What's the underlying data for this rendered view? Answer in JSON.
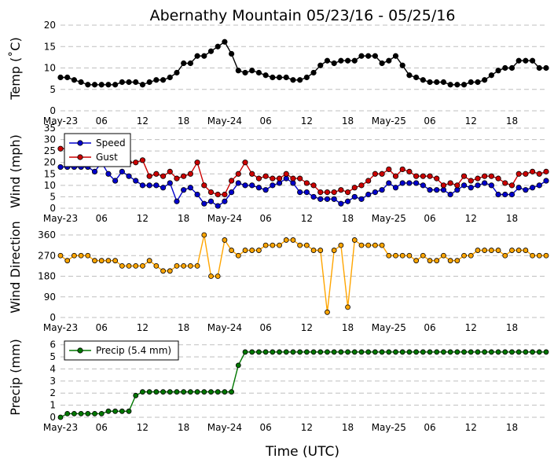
{
  "title": "Abernathy Mountain 05/23/16 - 05/25/16",
  "xlabel": "Time (UTC)",
  "x_ticks": [
    "May-23",
    "06",
    "12",
    "18",
    "May-24",
    "06",
    "12",
    "18",
    "May-25",
    "06",
    "12",
    "18"
  ],
  "chart_data": [
    {
      "type": "line",
      "ylabel": "Temp (˚C)",
      "ylim": [
        0,
        20
      ],
      "yticks": [
        0,
        5,
        10,
        15,
        20
      ],
      "grid": true,
      "x_unit": "hours since 2016-05-23 00:00 UTC",
      "series": [
        {
          "name": "Temperature",
          "color": "#000000",
          "x": [
            0,
            1,
            2,
            3,
            4,
            5,
            6,
            7,
            8,
            9,
            10,
            11,
            12,
            13,
            14,
            15,
            16,
            17,
            18,
            19,
            20,
            21,
            22,
            23,
            24,
            25,
            26,
            27,
            28,
            29,
            30,
            31,
            32,
            33,
            34,
            35,
            36,
            37,
            38,
            39,
            40,
            41,
            42,
            43,
            44,
            45,
            46,
            47,
            48,
            49,
            50,
            51,
            52,
            53,
            54,
            55,
            56,
            57,
            58,
            59,
            60,
            61,
            62,
            63,
            64,
            65,
            66,
            67,
            68,
            69,
            70,
            71
          ],
          "values": [
            7.8,
            7.8,
            7.2,
            6.7,
            6.1,
            6.1,
            6.1,
            6.1,
            6.1,
            6.7,
            6.7,
            6.7,
            6.1,
            6.7,
            7.2,
            7.2,
            7.8,
            8.9,
            11.1,
            11.1,
            12.8,
            12.8,
            13.9,
            15.0,
            16.1,
            13.3,
            9.4,
            8.9,
            9.4,
            8.9,
            8.3,
            7.8,
            7.8,
            7.8,
            7.2,
            7.2,
            7.8,
            8.9,
            10.6,
            11.7,
            11.1,
            11.7,
            11.7,
            11.7,
            12.8,
            12.8,
            12.8,
            11.1,
            11.7,
            12.8,
            10.6,
            8.3,
            7.8,
            7.2,
            6.7,
            6.7,
            6.7,
            6.1,
            6.1,
            6.1,
            6.7,
            6.7,
            7.2,
            8.3,
            9.4,
            10.0,
            10.0,
            11.7,
            11.7,
            11.7,
            10.0,
            10.0
          ]
        }
      ]
    },
    {
      "type": "line",
      "ylabel": "Wind (mph)",
      "ylim": [
        0,
        35
      ],
      "yticks": [
        0,
        5,
        10,
        15,
        20,
        25,
        30,
        35
      ],
      "grid": true,
      "legend": "top-left",
      "series": [
        {
          "name": "Speed",
          "color": "#0000cc",
          "x": [
            0,
            1,
            2,
            3,
            4,
            5,
            6,
            7,
            8,
            9,
            10,
            11,
            12,
            13,
            14,
            15,
            16,
            17,
            18,
            19,
            20,
            21,
            22,
            23,
            24,
            25,
            26,
            27,
            28,
            29,
            30,
            31,
            32,
            33,
            34,
            35,
            36,
            37,
            38,
            39,
            40,
            41,
            42,
            43,
            44,
            45,
            46,
            47,
            48,
            49,
            50,
            51,
            52,
            53,
            54,
            55,
            56,
            57,
            58,
            59,
            60,
            61,
            62,
            63,
            64,
            65,
            66,
            67,
            68,
            69,
            70,
            71
          ],
          "values": [
            18,
            18,
            18,
            18,
            18,
            16,
            20,
            15,
            12,
            16,
            14,
            12,
            10,
            10,
            10,
            9,
            11,
            3,
            8,
            9,
            6,
            2,
            3,
            1,
            3,
            7,
            11,
            10,
            10,
            9,
            8,
            10,
            11,
            13,
            11,
            7,
            7,
            5,
            4,
            4,
            4,
            2,
            3,
            5,
            4,
            6,
            7,
            8,
            11,
            9,
            11,
            11,
            11,
            10,
            8,
            8,
            8,
            6,
            8,
            10,
            9,
            10,
            11,
            10,
            6,
            6,
            6,
            9,
            8,
            9,
            10,
            12
          ]
        },
        {
          "name": "Gust",
          "color": "#cc0000",
          "x": [
            0,
            1,
            2,
            3,
            4,
            5,
            6,
            7,
            8,
            9,
            10,
            11,
            12,
            13,
            14,
            15,
            16,
            17,
            18,
            19,
            20,
            21,
            22,
            23,
            24,
            25,
            26,
            27,
            28,
            29,
            30,
            31,
            32,
            33,
            34,
            35,
            36,
            37,
            38,
            39,
            40,
            41,
            42,
            43,
            44,
            45,
            46,
            47,
            48,
            49,
            50,
            51,
            52,
            53,
            54,
            55,
            56,
            57,
            58,
            59,
            60,
            61,
            62,
            63,
            64,
            65,
            66,
            67,
            68,
            69,
            70,
            71
          ],
          "values": [
            26,
            26,
            26,
            26,
            26,
            26,
            26,
            25,
            24,
            22,
            20,
            20,
            21,
            14,
            15,
            14,
            16,
            13,
            14,
            15,
            20,
            10,
            7,
            6,
            6,
            12,
            15,
            20,
            15,
            13,
            14,
            13,
            13,
            15,
            13,
            13,
            11,
            10,
            7,
            7,
            7,
            8,
            7,
            9,
            10,
            12,
            15,
            15,
            17,
            14,
            17,
            16,
            14,
            14,
            14,
            13,
            10,
            11,
            10,
            14,
            12,
            13,
            14,
            14,
            13,
            11,
            10,
            15,
            15,
            16,
            15,
            16
          ]
        }
      ]
    },
    {
      "type": "line",
      "ylabel": "Wind Direction",
      "ylim": [
        0,
        360
      ],
      "yticks": [
        0,
        90,
        180,
        270,
        360
      ],
      "grid": true,
      "series": [
        {
          "name": "Direction",
          "color": "#ffa500",
          "x": [
            0,
            1,
            2,
            3,
            4,
            5,
            6,
            7,
            8,
            9,
            10,
            11,
            12,
            13,
            14,
            15,
            16,
            17,
            18,
            19,
            20,
            21,
            22,
            23,
            24,
            25,
            26,
            27,
            28,
            29,
            30,
            31,
            32,
            33,
            34,
            35,
            36,
            37,
            38,
            39,
            40,
            41,
            42,
            43,
            44,
            45,
            46,
            47,
            48,
            49,
            50,
            51,
            52,
            53,
            54,
            55,
            56,
            57,
            58,
            59,
            60,
            61,
            62,
            63,
            64,
            65,
            66,
            67,
            68,
            69,
            70,
            71
          ],
          "values": [
            270,
            248,
            270,
            270,
            270,
            248,
            248,
            248,
            248,
            225,
            225,
            225,
            225,
            248,
            225,
            203,
            203,
            225,
            225,
            225,
            225,
            360,
            180,
            180,
            338,
            293,
            270,
            293,
            293,
            293,
            315,
            315,
            315,
            338,
            338,
            315,
            315,
            293,
            293,
            23,
            293,
            315,
            45,
            338,
            315,
            315,
            315,
            315,
            270,
            270,
            270,
            270,
            248,
            270,
            248,
            248,
            270,
            248,
            248,
            270,
            270,
            293,
            293,
            293,
            293,
            270,
            293,
            293,
            293,
            270,
            270,
            270
          ]
        }
      ]
    },
    {
      "type": "line",
      "ylabel": "Precip (mm)",
      "ylim": [
        0,
        6.5
      ],
      "yticks": [
        0,
        1,
        2,
        3,
        4,
        5,
        6
      ],
      "grid": true,
      "legend": "top-left",
      "series": [
        {
          "name": "Precip (5.4 mm)",
          "color": "#007700",
          "x": [
            0,
            1,
            2,
            3,
            4,
            5,
            6,
            7,
            8,
            9,
            10,
            11,
            12,
            13,
            14,
            15,
            16,
            17,
            18,
            19,
            20,
            21,
            22,
            23,
            24,
            25,
            26,
            27,
            28,
            29,
            30,
            31,
            32,
            33,
            34,
            35,
            36,
            37,
            38,
            39,
            40,
            41,
            42,
            43,
            44,
            45,
            46,
            47,
            48,
            49,
            50,
            51,
            52,
            53,
            54,
            55,
            56,
            57,
            58,
            59,
            60,
            61,
            62,
            63,
            64,
            65,
            66,
            67,
            68,
            69,
            70,
            71
          ],
          "values": [
            0.0,
            0.3,
            0.3,
            0.3,
            0.3,
            0.3,
            0.3,
            0.5,
            0.5,
            0.5,
            0.5,
            1.8,
            2.1,
            2.1,
            2.1,
            2.1,
            2.1,
            2.1,
            2.1,
            2.1,
            2.1,
            2.1,
            2.1,
            2.1,
            2.1,
            2.1,
            4.3,
            5.4,
            5.4,
            5.4,
            5.4,
            5.4,
            5.4,
            5.4,
            5.4,
            5.4,
            5.4,
            5.4,
            5.4,
            5.4,
            5.4,
            5.4,
            5.4,
            5.4,
            5.4,
            5.4,
            5.4,
            5.4,
            5.4,
            5.4,
            5.4,
            5.4,
            5.4,
            5.4,
            5.4,
            5.4,
            5.4,
            5.4,
            5.4,
            5.4,
            5.4,
            5.4,
            5.4,
            5.4,
            5.4,
            5.4,
            5.4,
            5.4,
            5.4,
            5.4,
            5.4,
            5.4
          ]
        }
      ]
    }
  ]
}
